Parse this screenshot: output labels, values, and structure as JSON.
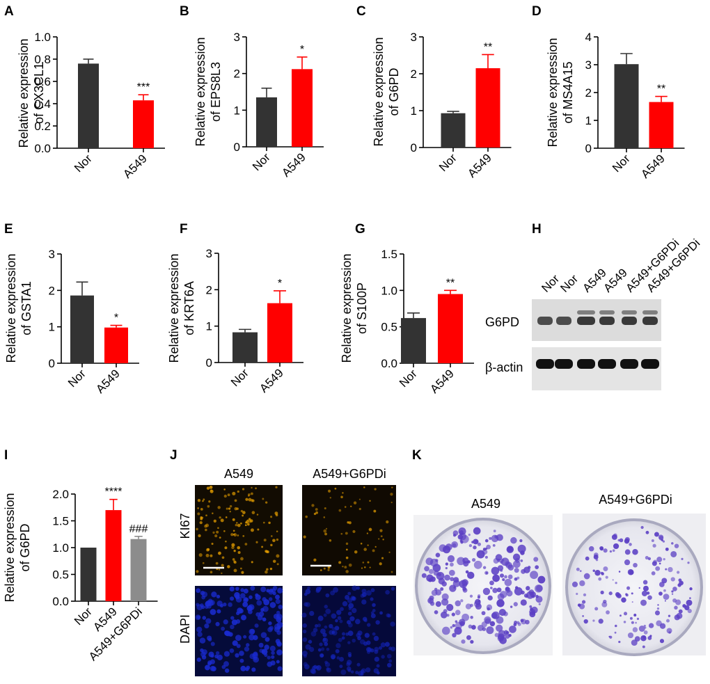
{
  "chart_data": [
    {
      "panel": "A",
      "type": "bar",
      "categories": [
        "Nor",
        "A549"
      ],
      "values": [
        0.76,
        0.43
      ],
      "errors": [
        0.04,
        0.05
      ],
      "ylabel": [
        "Relative expression",
        "of CX3CL1"
      ],
      "yticks": [
        "0.0",
        "0.2",
        "0.4",
        "0.6",
        "0.8",
        "1.0"
      ],
      "ylim": [
        0,
        1.0
      ],
      "significance": [
        "",
        "***"
      ]
    },
    {
      "panel": "B",
      "type": "bar",
      "categories": [
        "Nor",
        "A549"
      ],
      "values": [
        1.35,
        2.12
      ],
      "errors": [
        0.25,
        0.33
      ],
      "ylabel": [
        "Relative expression",
        "of EPS8L3"
      ],
      "yticks": [
        "0",
        "1",
        "2",
        "3"
      ],
      "ylim": [
        0,
        3
      ],
      "significance": [
        "",
        "*"
      ]
    },
    {
      "panel": "C",
      "type": "bar",
      "categories": [
        "Nor",
        "A549"
      ],
      "values": [
        0.93,
        2.15
      ],
      "errors": [
        0.05,
        0.37
      ],
      "ylabel": [
        "Relative expression",
        "of G6PD"
      ],
      "yticks": [
        "0",
        "1",
        "2",
        "3"
      ],
      "ylim": [
        0,
        3
      ],
      "significance": [
        "",
        "**"
      ]
    },
    {
      "panel": "D",
      "type": "bar",
      "categories": [
        "Nor",
        "A549"
      ],
      "values": [
        3.02,
        1.66
      ],
      "errors": [
        0.38,
        0.2
      ],
      "ylabel": [
        "Relative expression",
        "of MS4A15"
      ],
      "yticks": [
        "0",
        "1",
        "2",
        "3",
        "4"
      ],
      "ylim": [
        0,
        4
      ],
      "significance": [
        "",
        "**"
      ]
    },
    {
      "panel": "E",
      "type": "bar",
      "categories": [
        "Nor",
        "A549"
      ],
      "values": [
        1.86,
        0.98
      ],
      "errors": [
        0.37,
        0.06
      ],
      "ylabel": [
        "Relative expression",
        "of GSTA1"
      ],
      "yticks": [
        "0",
        "1",
        "2",
        "3"
      ],
      "ylim": [
        0,
        3
      ],
      "significance": [
        "",
        "*"
      ]
    },
    {
      "panel": "F",
      "type": "bar",
      "categories": [
        "Nor",
        "A549"
      ],
      "values": [
        0.83,
        1.63
      ],
      "errors": [
        0.08,
        0.34
      ],
      "ylabel": [
        "Relative expression",
        "of KRT6A"
      ],
      "yticks": [
        "0",
        "1",
        "2",
        "3"
      ],
      "ylim": [
        0,
        3
      ],
      "significance": [
        "",
        "*"
      ]
    },
    {
      "panel": "G",
      "type": "bar",
      "categories": [
        "Nor",
        "A549"
      ],
      "values": [
        0.62,
        0.95
      ],
      "errors": [
        0.07,
        0.05
      ],
      "ylabel": [
        "Relative expression",
        "of S100P"
      ],
      "yticks": [
        "0.0",
        "0.5",
        "1.0",
        "1.5"
      ],
      "ylim": [
        0,
        1.5
      ],
      "significance": [
        "",
        "**"
      ]
    },
    {
      "panel": "I",
      "type": "bar",
      "categories": [
        "Nor",
        "A549",
        "A549+G6PDi"
      ],
      "values": [
        1.0,
        1.7,
        1.16
      ],
      "errors": [
        0,
        0.2,
        0.05
      ],
      "ylabel": [
        "Relative expression",
        "of G6PD"
      ],
      "yticks": [
        "0.0",
        "0.5",
        "1.0",
        "1.5",
        "2.0"
      ],
      "ylim": [
        0,
        2.0
      ],
      "significance": [
        "",
        "****",
        "###"
      ]
    }
  ],
  "colors": {
    "nor": "#333333",
    "a549": "#ff0000",
    "g6pdi": "#8c8c8c",
    "ki67": "#e8a000",
    "dapi": "#1a2bd0",
    "colony": "#5b3fc4"
  },
  "blot": {
    "panel": "H",
    "lanes": [
      "Nor",
      "Nor",
      "A549",
      "A549",
      "A549+G6PDi",
      "A549+G6PDi"
    ],
    "rows": [
      "G6PD",
      "β-actin"
    ]
  },
  "if_panel": {
    "panel": "J",
    "columns": [
      "A549",
      "A549+G6PDi"
    ],
    "rows": [
      "KI67",
      "DAPI"
    ]
  },
  "colony_panel": {
    "panel": "K",
    "columns": [
      "A549",
      "A549+G6PDi"
    ]
  }
}
